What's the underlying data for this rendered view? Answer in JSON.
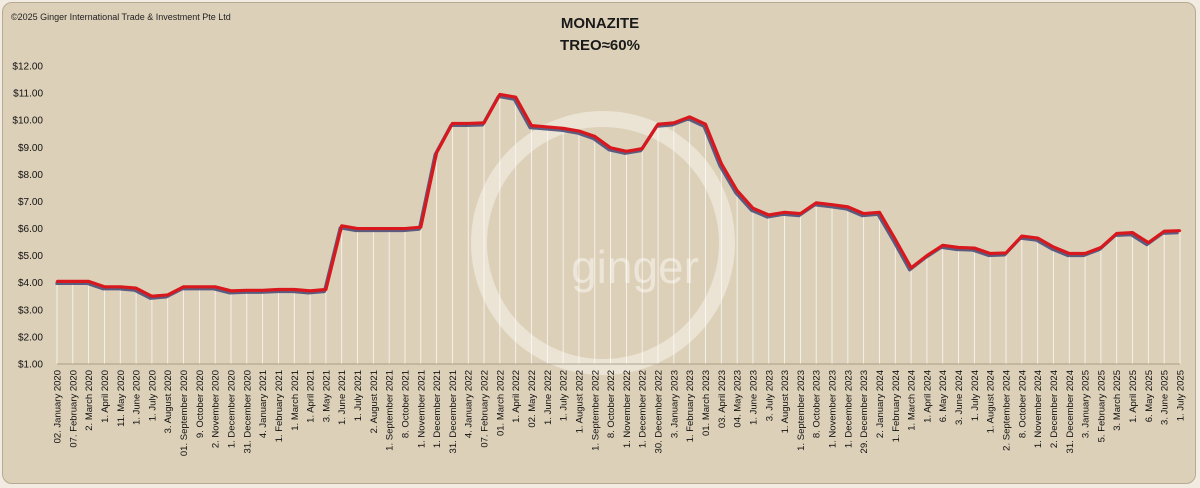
{
  "copyright": "©2025 Ginger International Trade & Investment Pte Ltd",
  "watermark": "ginger",
  "colors": {
    "line": "#d8181c",
    "shadow": "#4a4f7a",
    "background": "#ddd0b9",
    "drop": "#ffffff"
  },
  "chart_data": {
    "type": "line",
    "title": "MONAZITE",
    "subtitle": "TREO≈60%",
    "xlabel": "",
    "ylabel": "",
    "ylim": [
      1,
      12
    ],
    "ytick_labels": [
      "$1.00",
      "$2.00",
      "$3.00",
      "$4.00",
      "$5.00",
      "$6.00",
      "$7.00",
      "$8.00",
      "$9.00",
      "$10.00",
      "$11.00",
      "$12.00"
    ],
    "grid": false,
    "legend": "none",
    "points": [
      {
        "x": "02. January 2020",
        "y": 4.05
      },
      {
        "x": "07. February 2020",
        "y": 4.05
      },
      {
        "x": "2. March 2020",
        "y": 4.05
      },
      {
        "x": "1. April 2020",
        "y": 3.85
      },
      {
        "x": "11. May 2020",
        "y": 3.85
      },
      {
        "x": "1. June 2020",
        "y": 3.8
      },
      {
        "x": "1. July 2020",
        "y": 3.5
      },
      {
        "x": "3. August 2020",
        "y": 3.55
      },
      {
        "x": "01. September 2020",
        "y": 3.85
      },
      {
        "x": "9. October 2020",
        "y": 3.85
      },
      {
        "x": "2. November 2020",
        "y": 3.85
      },
      {
        "x": "1. December 2020",
        "y": 3.7
      },
      {
        "x": "31. December 2020",
        "y": 3.72
      },
      {
        "x": "4. January 2021",
        "y": 3.72
      },
      {
        "x": "1. February 2021",
        "y": 3.75
      },
      {
        "x": "1. March 2021",
        "y": 3.75
      },
      {
        "x": "1. April 2021",
        "y": 3.7
      },
      {
        "x": "3. May 2021",
        "y": 3.75
      },
      {
        "x": "1. June 2021",
        "y": 6.1
      },
      {
        "x": "1. July 2021",
        "y": 6.0
      },
      {
        "x": "2. August 2021",
        "y": 6.0
      },
      {
        "x": "1. September 2021",
        "y": 6.0
      },
      {
        "x": "8. October 2021",
        "y": 6.0
      },
      {
        "x": "1. November 2021",
        "y": 6.05
      },
      {
        "x": "1. December 2021",
        "y": 8.8
      },
      {
        "x": "31. December 2021",
        "y": 9.88
      },
      {
        "x": "4. January 2022",
        "y": 9.88
      },
      {
        "x": "07. February 2022",
        "y": 9.9
      },
      {
        "x": "01. March 2022",
        "y": 10.95
      },
      {
        "x": "1. April 2022",
        "y": 10.85
      },
      {
        "x": "02. May 2022",
        "y": 9.8
      },
      {
        "x": "1. June 2022",
        "y": 9.75
      },
      {
        "x": "1. July 2022",
        "y": 9.7
      },
      {
        "x": "1. August 2022",
        "y": 9.6
      },
      {
        "x": "1. September 2022",
        "y": 9.4
      },
      {
        "x": "8. October 2022",
        "y": 8.98
      },
      {
        "x": "1. November 2022",
        "y": 8.85
      },
      {
        "x": "1. December 2022",
        "y": 8.95
      },
      {
        "x": "30. December 2022",
        "y": 9.85
      },
      {
        "x": "3. January 2023",
        "y": 9.9
      },
      {
        "x": "1. February 2023",
        "y": 10.12
      },
      {
        "x": "01. March 2023",
        "y": 9.85
      },
      {
        "x": "03. April 2023",
        "y": 8.4
      },
      {
        "x": "04. May 2023",
        "y": 7.4
      },
      {
        "x": "1. June 2023",
        "y": 6.75
      },
      {
        "x": "3. July 2023",
        "y": 6.5
      },
      {
        "x": "1. August 2023",
        "y": 6.6
      },
      {
        "x": "1. September 2023",
        "y": 6.55
      },
      {
        "x": "8. October 2023",
        "y": 6.95
      },
      {
        "x": "1. November 2023",
        "y": 6.88
      },
      {
        "x": "1. December 2023",
        "y": 6.8
      },
      {
        "x": "29. December 2023",
        "y": 6.55
      },
      {
        "x": "2. January 2024",
        "y": 6.6
      },
      {
        "x": "1. February 2024",
        "y": 5.6
      },
      {
        "x": "1. March 2024",
        "y": 4.55
      },
      {
        "x": "1. April 2024",
        "y": 5.0
      },
      {
        "x": "6. May 2024",
        "y": 5.38
      },
      {
        "x": "3. June 2024",
        "y": 5.3
      },
      {
        "x": "1. July 2024",
        "y": 5.28
      },
      {
        "x": "1. August 2024",
        "y": 5.08
      },
      {
        "x": "2. September 2024",
        "y": 5.1
      },
      {
        "x": "8. October 2024",
        "y": 5.72
      },
      {
        "x": "1. November 2024",
        "y": 5.65
      },
      {
        "x": "2. December 2024",
        "y": 5.32
      },
      {
        "x": "31. December 2024",
        "y": 5.08
      },
      {
        "x": "3. January 2025",
        "y": 5.08
      },
      {
        "x": "5. February 2025",
        "y": 5.3
      },
      {
        "x": "3. March 2025",
        "y": 5.82
      },
      {
        "x": "1. April 2025",
        "y": 5.85
      },
      {
        "x": "6. May 2025",
        "y": 5.48
      },
      {
        "x": "3. June 2025",
        "y": 5.9
      },
      {
        "x": "1. July 2025",
        "y": 5.92
      }
    ]
  }
}
